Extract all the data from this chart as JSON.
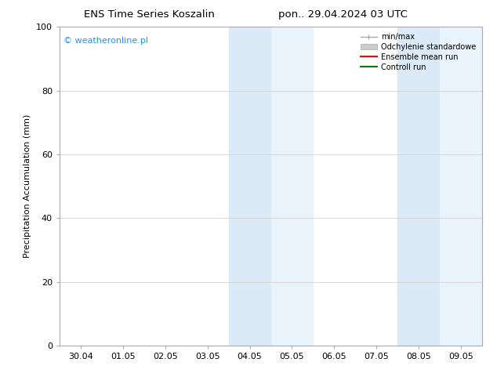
{
  "title_left": "ENS Time Series Koszalin",
  "title_right": "pon.. 29.04.2024 03 UTC",
  "ylabel": "Precipitation Accumulation (mm)",
  "ylim": [
    0,
    100
  ],
  "yticks": [
    0,
    20,
    40,
    60,
    80,
    100
  ],
  "x_labels": [
    "30.04",
    "01.05",
    "02.05",
    "03.05",
    "04.05",
    "05.05",
    "06.05",
    "07.05",
    "08.05",
    "09.05"
  ],
  "x_values": [
    0,
    1,
    2,
    3,
    4,
    5,
    6,
    7,
    8,
    9
  ],
  "shaded_regions": [
    {
      "xmin": 3.5,
      "xmax": 4.5,
      "color": "#daeaf7"
    },
    {
      "xmin": 4.5,
      "xmax": 5.5,
      "color": "#e8f3fb"
    },
    {
      "xmin": 7.5,
      "xmax": 8.5,
      "color": "#daeaf7"
    },
    {
      "xmin": 8.5,
      "xmax": 9.5,
      "color": "#e8f3fb"
    }
  ],
  "watermark_text": "© weatheronline.pl",
  "watermark_color": "#1e90ff",
  "background_color": "#ffffff",
  "grid_color": "#cccccc",
  "font_size_title": 9.5,
  "font_size_labels": 8,
  "font_size_watermark": 8,
  "font_size_legend": 7,
  "legend_minmax_color": "#aaaaaa",
  "legend_std_facecolor": "#cccccc",
  "legend_std_edgecolor": "#aaaaaa",
  "legend_ens_color": "red",
  "legend_ctrl_color": "green"
}
